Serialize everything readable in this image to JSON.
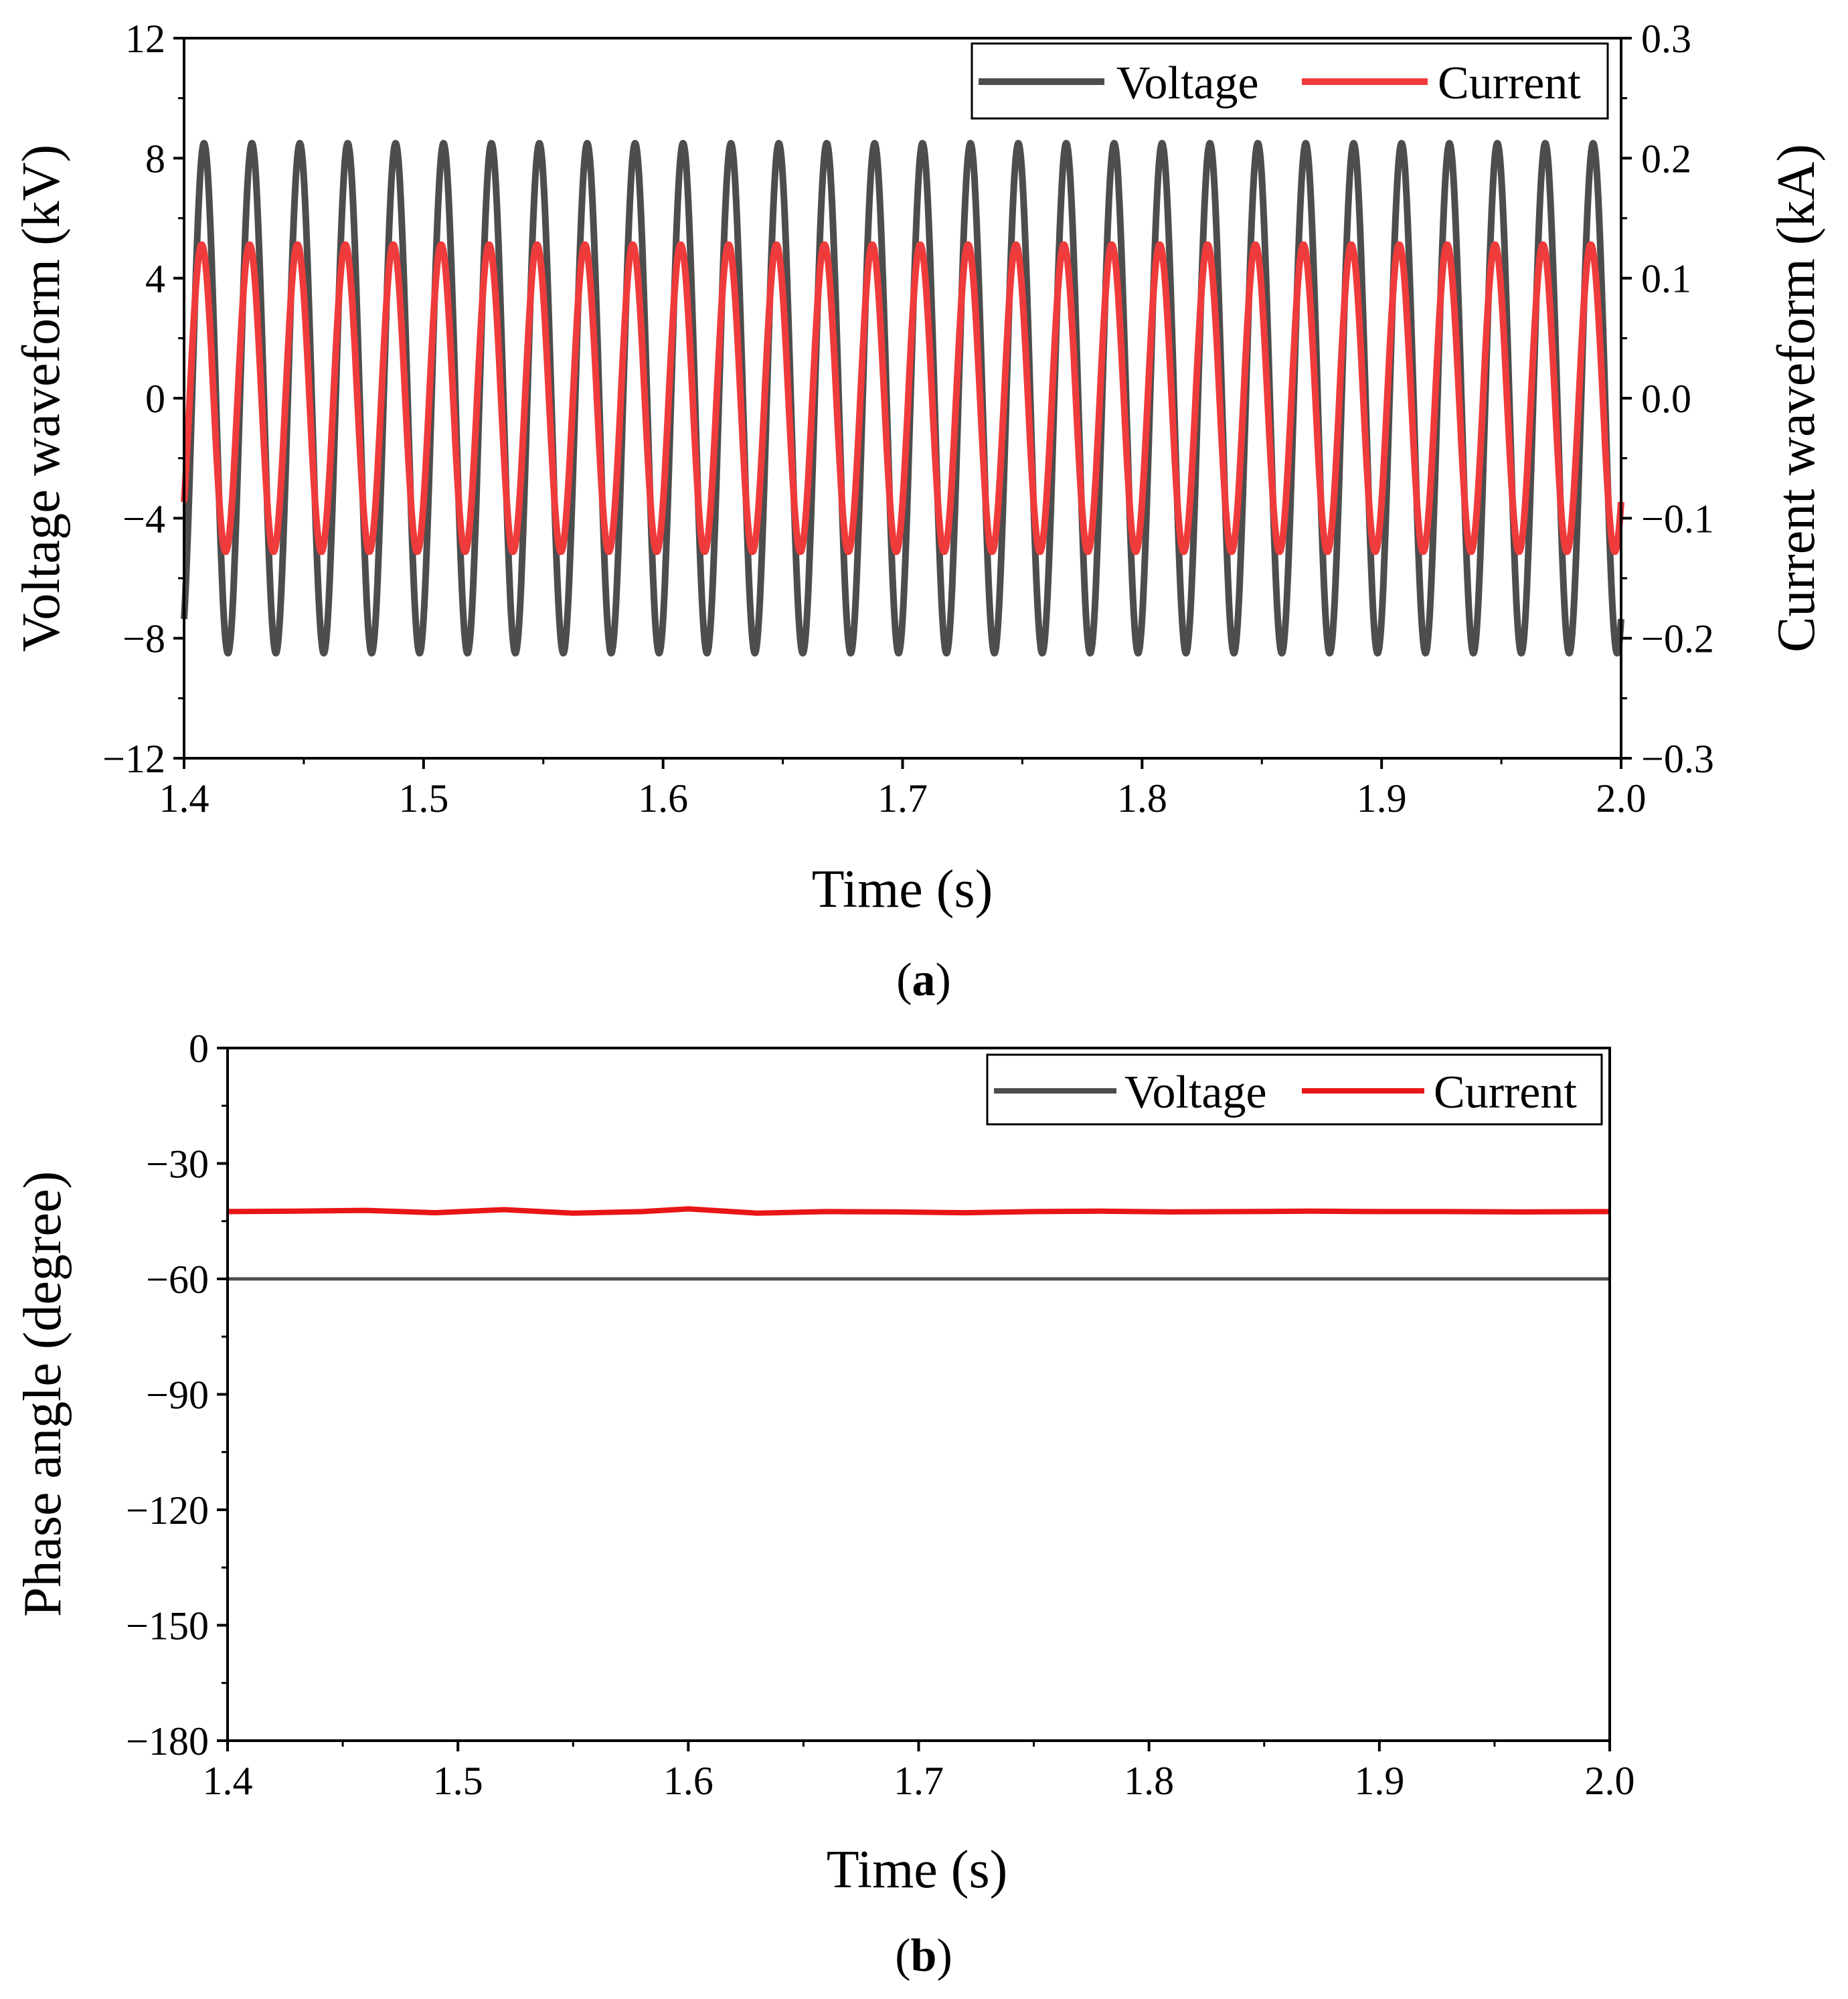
{
  "figure": {
    "background": "#ffffff"
  },
  "chart_data": [
    {
      "id": "a",
      "type": "line",
      "caption_label": "a",
      "xlabel": "Time (s)",
      "ylabel": "Voltage waveform (kV)",
      "y2label": "Current waveform (kA)",
      "xlim": [
        1.4,
        2.0
      ],
      "ylim": [
        -12,
        12
      ],
      "y2lim": [
        -0.3,
        0.3
      ],
      "xticks": [
        1.4,
        1.5,
        1.6,
        1.7,
        1.8,
        1.9,
        2.0
      ],
      "xtick_labels": [
        "1.4",
        "1.5",
        "1.6",
        "1.7",
        "1.8",
        "1.9",
        "2.0"
      ],
      "yticks": [
        -12,
        -8,
        -4,
        0,
        4,
        8,
        12
      ],
      "ytick_labels": [
        "−12",
        "−8",
        "−4",
        "0",
        "4",
        "8",
        "12"
      ],
      "y2ticks": [
        -0.3,
        -0.2,
        -0.1,
        0.0,
        0.1,
        0.2,
        0.3
      ],
      "y2tick_labels": [
        "−0.3",
        "−0.2",
        "−0.1",
        "0.0",
        "0.1",
        "0.2",
        "0.3"
      ],
      "legend_position": "top-right",
      "series": [
        {
          "name": "Voltage",
          "color": "#4d4d4d",
          "axis": "left",
          "waveform": "sine",
          "amplitude": 8.5,
          "frequency_hz": 50,
          "phase_deg": -60
        },
        {
          "name": "Current",
          "color": "#ef3b3b",
          "axis": "right",
          "waveform": "sine",
          "amplitude": 0.128,
          "frequency_hz": 50,
          "phase_deg": -42.5
        }
      ]
    },
    {
      "id": "b",
      "type": "line",
      "caption_label": "b",
      "xlabel": "Time (s)",
      "ylabel": "Phase angle (degree)",
      "xlim": [
        1.4,
        2.0
      ],
      "ylim": [
        -180,
        0
      ],
      "xticks": [
        1.4,
        1.5,
        1.6,
        1.7,
        1.8,
        1.9,
        2.0
      ],
      "xtick_labels": [
        "1.4",
        "1.5",
        "1.6",
        "1.7",
        "1.8",
        "1.9",
        "2.0"
      ],
      "yticks": [
        -180,
        -150,
        -120,
        -90,
        -60,
        -30,
        0
      ],
      "ytick_labels": [
        "−180",
        "−150",
        "−120",
        "−90",
        "−60",
        "−30",
        "0"
      ],
      "legend_position": "top-right",
      "series": [
        {
          "name": "Voltage",
          "color": "#4d4d4d",
          "x": [
            1.4,
            2.0
          ],
          "y": [
            -60,
            -60
          ]
        },
        {
          "name": "Current",
          "color": "#e81616",
          "x": [
            1.4,
            1.43,
            1.46,
            1.49,
            1.52,
            1.55,
            1.58,
            1.6,
            1.63,
            1.66,
            1.69,
            1.72,
            1.75,
            1.78,
            1.81,
            1.84,
            1.87,
            1.9,
            1.93,
            1.96,
            2.0
          ],
          "y": [
            -42.5,
            -42.4,
            -42.2,
            -42.8,
            -42.0,
            -42.9,
            -42.5,
            -41.8,
            -42.9,
            -42.5,
            -42.6,
            -42.8,
            -42.5,
            -42.4,
            -42.6,
            -42.5,
            -42.4,
            -42.5,
            -42.5,
            -42.6,
            -42.5
          ]
        }
      ]
    }
  ]
}
